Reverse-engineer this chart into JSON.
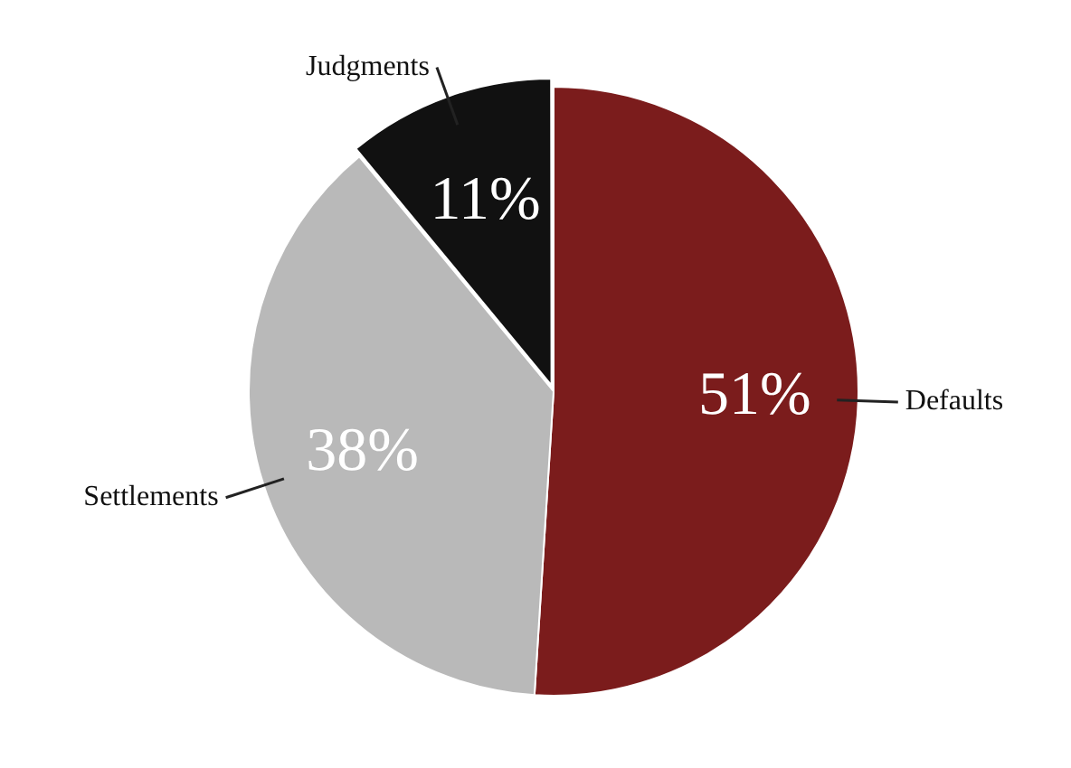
{
  "chart_data": {
    "type": "pie",
    "categories": [
      "Defaults",
      "Settlements",
      "Judgments"
    ],
    "values": [
      51,
      38,
      11
    ],
    "colors": [
      "#7b1c1c",
      "#b9b9b9",
      "#111111"
    ],
    "value_labels": [
      "51%",
      "38%",
      "11%"
    ],
    "legend": false
  }
}
